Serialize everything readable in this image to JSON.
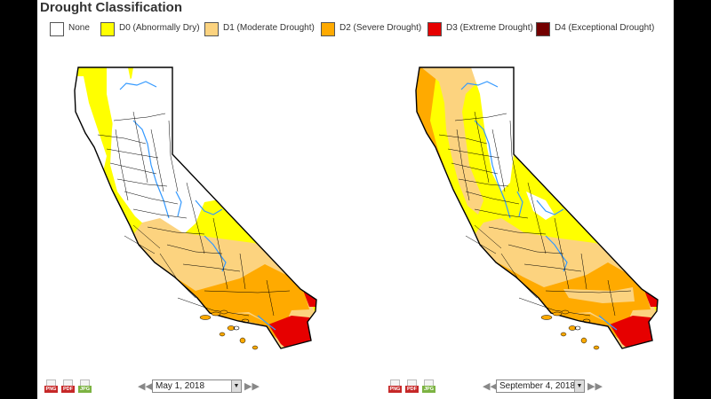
{
  "title": "Drought Classification",
  "legend": [
    {
      "label": "None",
      "color": "#ffffff"
    },
    {
      "label": "D0 (Abnormally Dry)",
      "color": "#ffff00"
    },
    {
      "label": "D1 (Moderate Drought)",
      "color": "#fcd37f"
    },
    {
      "label": "D2 (Severe Drought)",
      "color": "#ffaa00"
    },
    {
      "label": "D3 (Extreme Drought)",
      "color": "#e60000"
    },
    {
      "label": "D4 (Exceptional Drought)",
      "color": "#730000"
    }
  ],
  "downloads": {
    "png": "PNG",
    "pdf": "PDF",
    "jpg": "JPG"
  },
  "maps": [
    {
      "date": "May 1, 2018"
    },
    {
      "date": "September 4, 2018"
    }
  ],
  "icons": {
    "prev": "double-left-arrow-icon",
    "next": "double-right-arrow-icon",
    "dropdown": "dropdown-arrow-icon"
  }
}
